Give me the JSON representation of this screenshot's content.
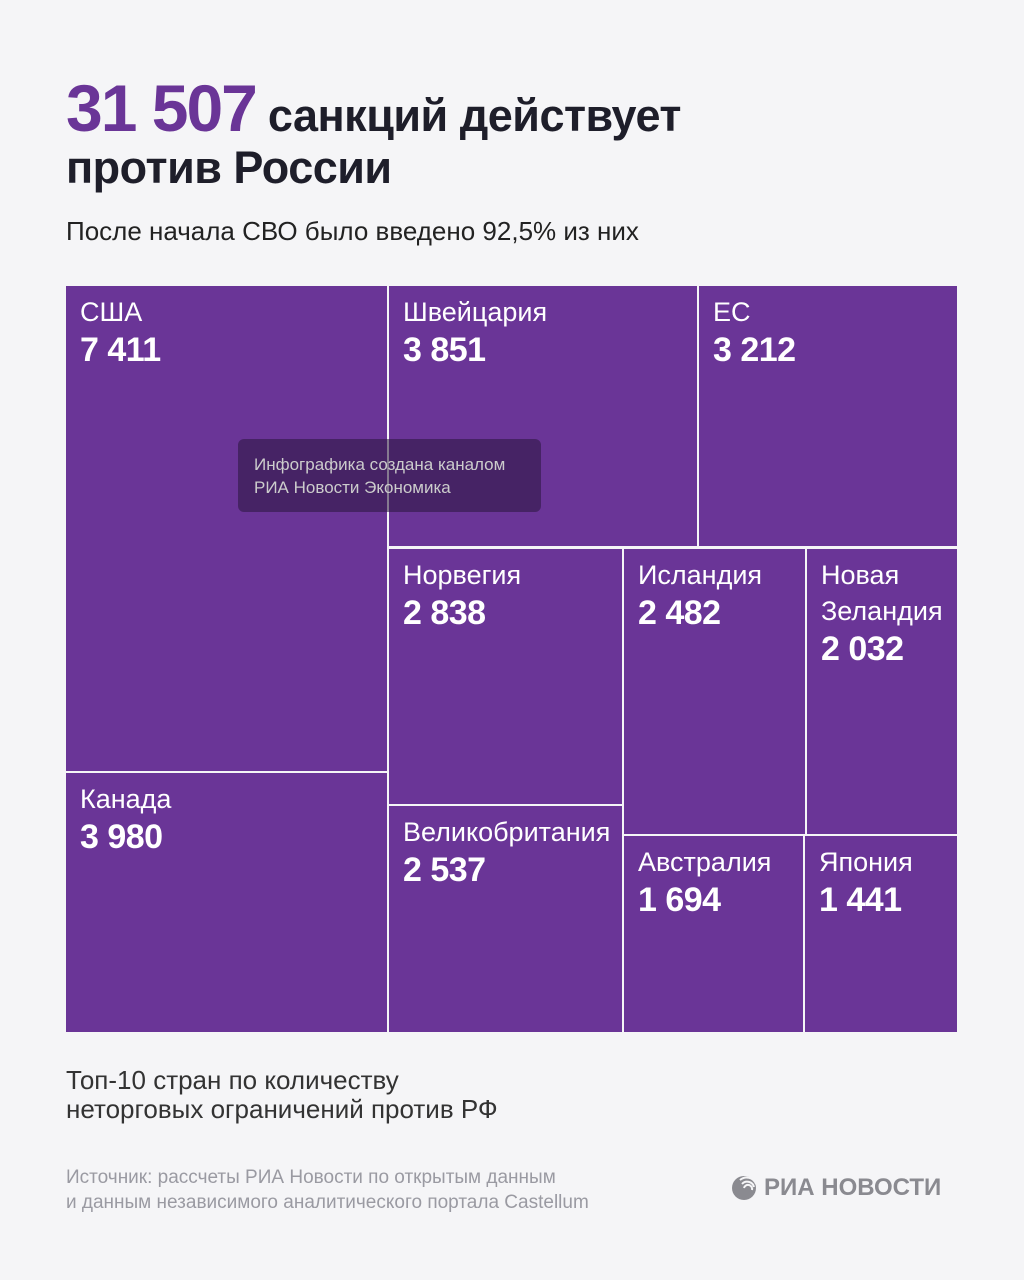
{
  "header": {
    "total": "31 507",
    "title_rest_line1": "санкций действует",
    "title_line2": "против России",
    "subtitle": "После начала СВО было введено 92,5% из них"
  },
  "chart_data": {
    "type": "treemap",
    "items": [
      {
        "label": "США",
        "value": 7411,
        "display": "7 411"
      },
      {
        "label": "Канада",
        "value": 3980,
        "display": "3 980"
      },
      {
        "label": "Швейцария",
        "value": 3851,
        "display": "3 851"
      },
      {
        "label": "ЕС",
        "value": 3212,
        "display": "3 212"
      },
      {
        "label": "Норвегия",
        "value": 2838,
        "display": "2 838"
      },
      {
        "label": "Великобритания",
        "value": 2537,
        "display": "2 537"
      },
      {
        "label": "Исландия",
        "value": 2482,
        "display": "2 482"
      },
      {
        "label": "Новая Зеландия",
        "value": 2032,
        "display": "2 032"
      },
      {
        "label": "Австралия",
        "value": 1694,
        "display": "1 694"
      },
      {
        "label": "Япония",
        "value": 1441,
        "display": "1 441"
      }
    ],
    "color": "#6a3597"
  },
  "watermark": {
    "line1": "Инфографика создана каналом",
    "line2": "РИА Новости Экономика"
  },
  "footer": {
    "caption_line1": "Топ-10 стран по количеству",
    "caption_line2": "неторговых ограничений против РФ",
    "source_line1": "Источник: рассчеты РИА Новости по открытым данным",
    "source_line2": "и данным независимого аналитического портала Castellum",
    "logo_text": "РИА НОВОСТИ"
  }
}
